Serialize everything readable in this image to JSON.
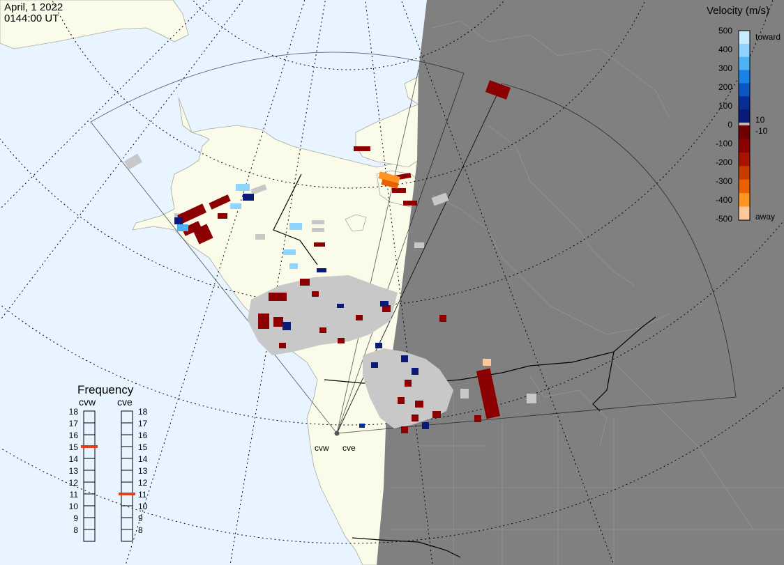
{
  "title": {
    "date": "April, 1 2022",
    "time": "0144:00 UT"
  },
  "colors": {
    "ocean": "#e8f4ff",
    "land": "#fbfbe9",
    "night": "#808080",
    "ground_scatter": "#c8c8c8",
    "border": "#000000"
  },
  "velocity_scale": {
    "title": "Velocity (m/s)",
    "ticks": [
      "500",
      "400",
      "300",
      "200",
      "100",
      "10",
      "0",
      "-10",
      "-100",
      "-200",
      "-300",
      "-400",
      "-500"
    ],
    "toward_label": "toward",
    "away_label": "away",
    "toward_colors": [
      "#c8ecff",
      "#8fd3ff",
      "#4fb1f5",
      "#1a82e6",
      "#0a56c2",
      "#072e96",
      "#0a1a78"
    ],
    "away_colors": [
      "#6e0000",
      "#8b0000",
      "#a81400",
      "#c83c00",
      "#e86000",
      "#ff9420",
      "#ffc89a"
    ]
  },
  "frequency": {
    "title": "Frequency",
    "radars": [
      {
        "code": "cvw",
        "value_mhz": 15
      },
      {
        "code": "cve",
        "value_mhz": 11
      }
    ],
    "ticks": [
      "18",
      "17",
      "16",
      "15",
      "14",
      "13",
      "12",
      "11",
      "10",
      "9",
      "8"
    ],
    "marker_color": "#e0401a"
  },
  "radar_sites": [
    {
      "code": "cvw"
    },
    {
      "code": "cve"
    }
  ]
}
